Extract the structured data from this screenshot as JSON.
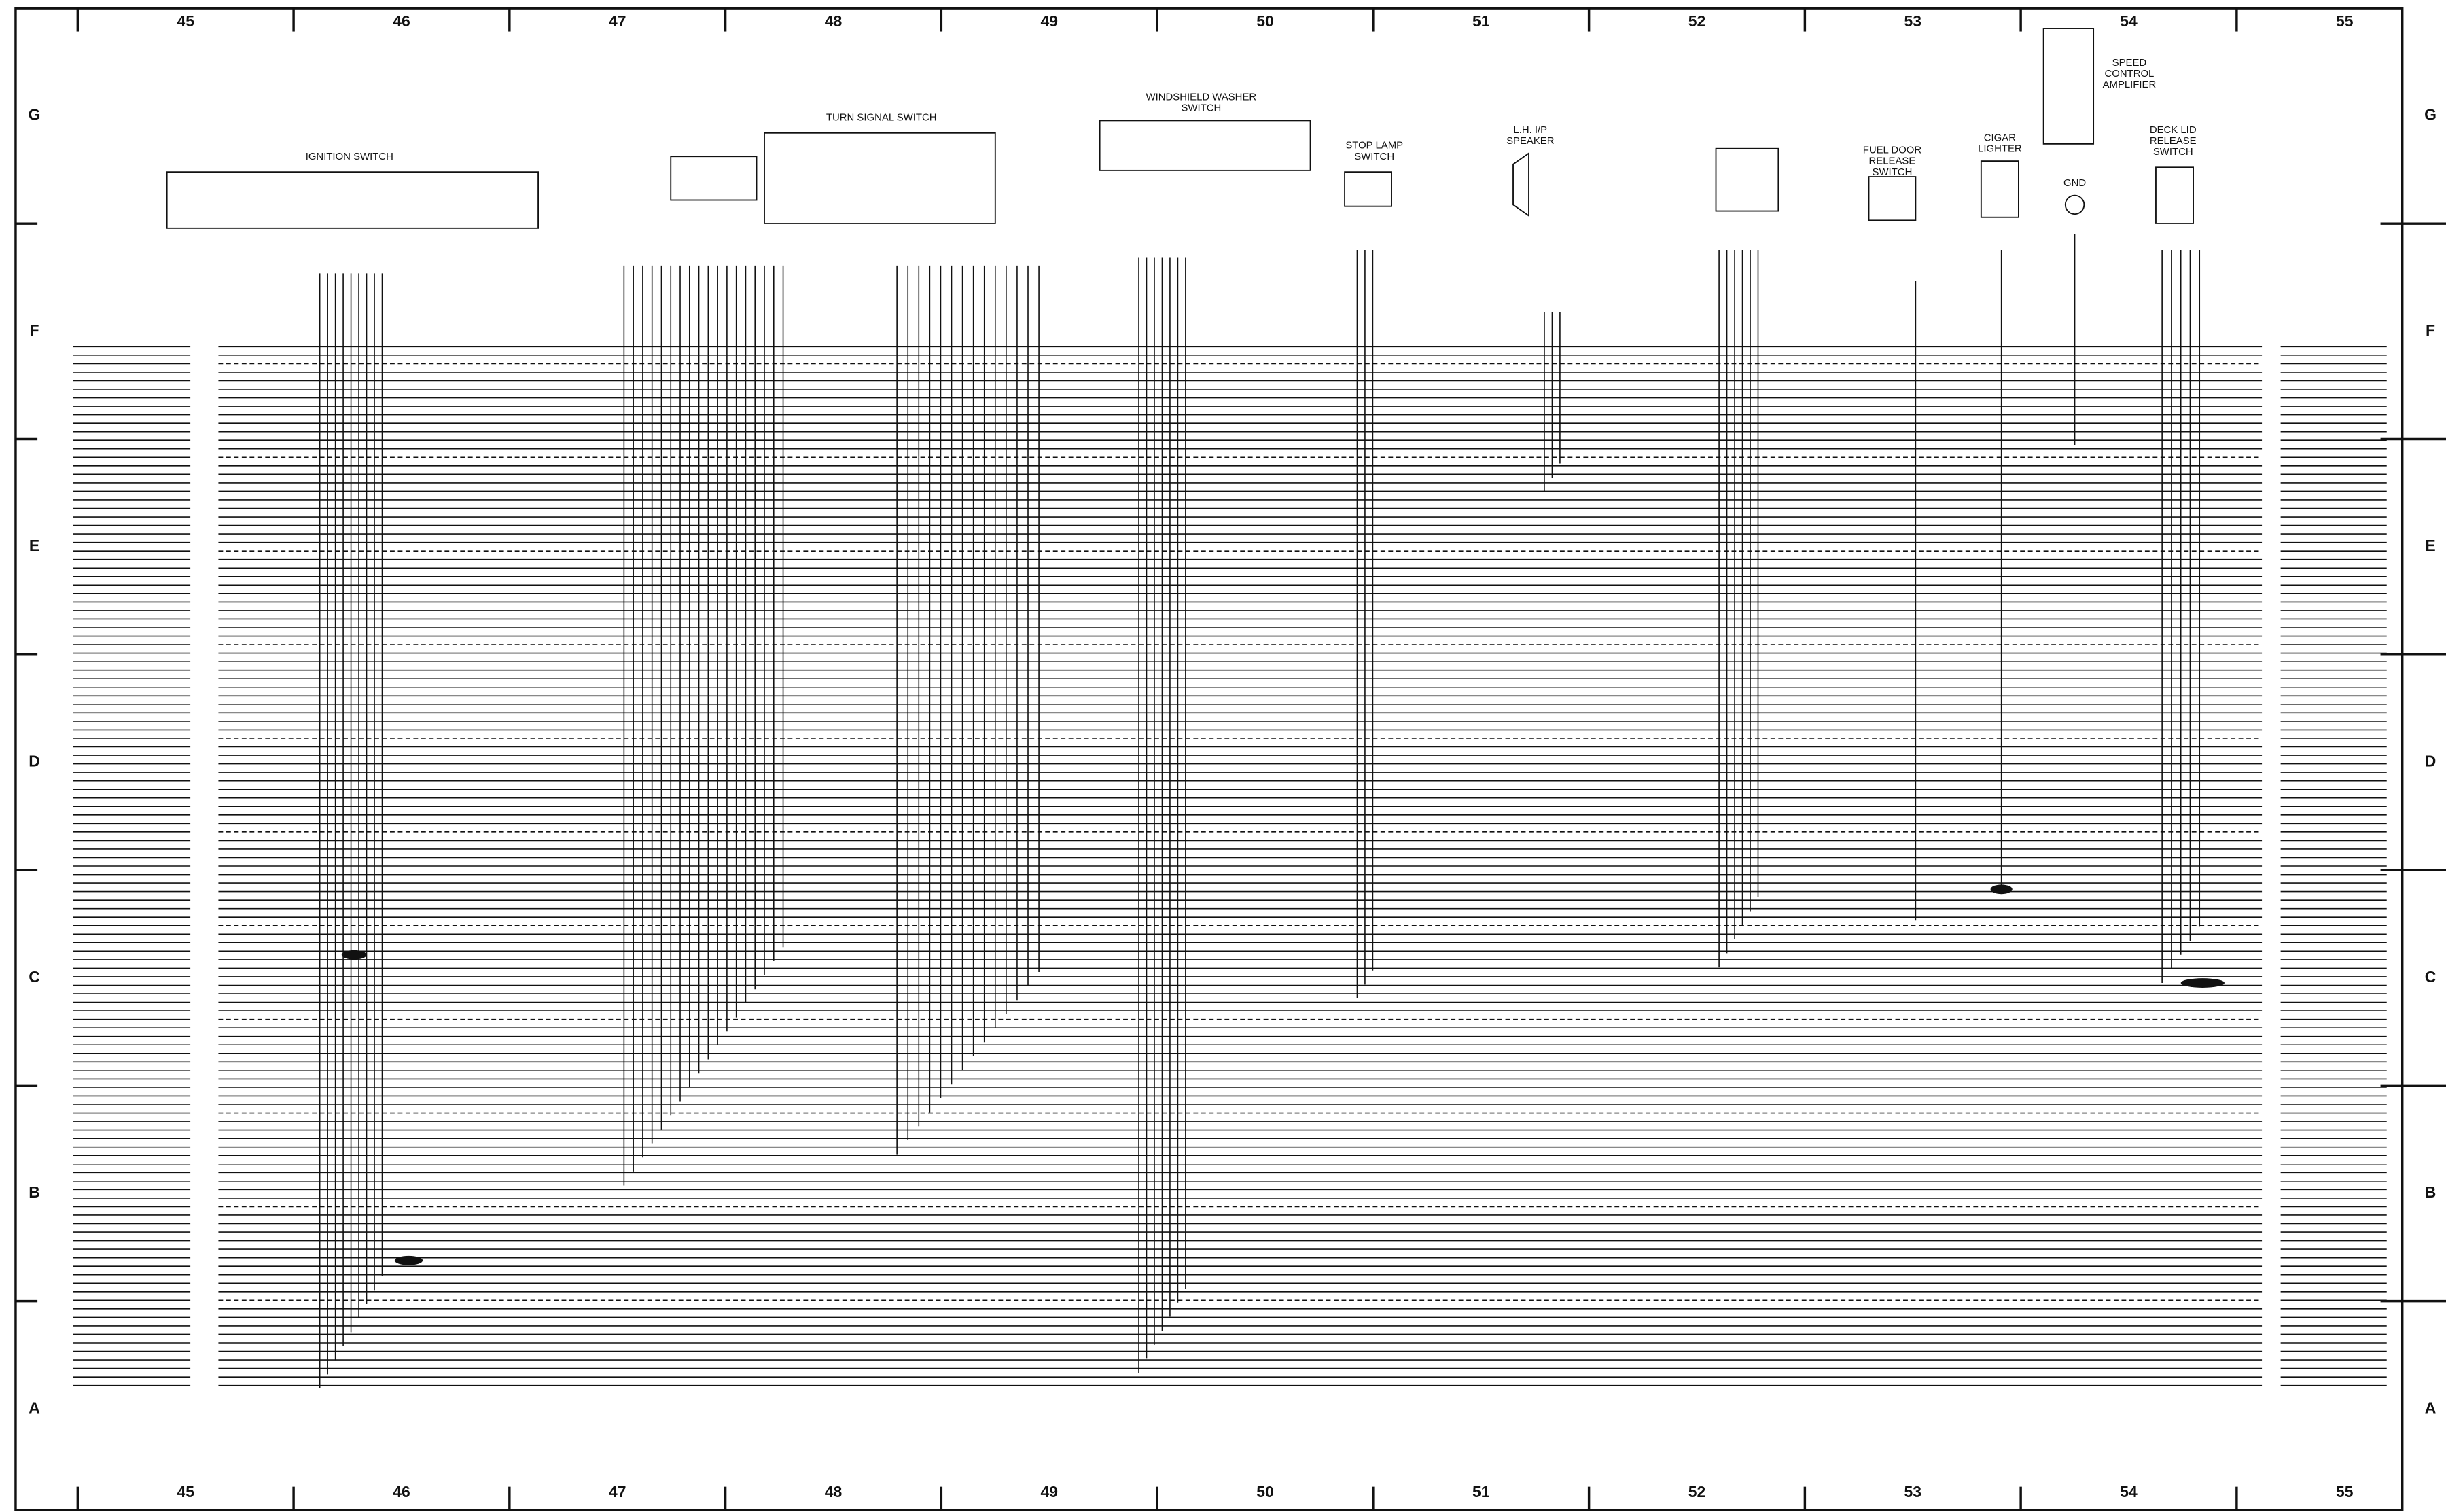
{
  "grid": {
    "columns": [
      "45",
      "46",
      "47",
      "48",
      "49",
      "50",
      "51",
      "52",
      "53",
      "54",
      "55"
    ],
    "rows": [
      "G",
      "F",
      "E",
      "D",
      "C",
      "B",
      "A"
    ]
  },
  "components": [
    {
      "label": [
        "IGNITION SWITCH"
      ]
    },
    {
      "label": [
        "TURN SIGNAL SWITCH"
      ]
    },
    {
      "label": [
        "WINDSHIELD WASHER",
        "SWITCH"
      ]
    },
    {
      "label": [
        "STOP LAMP",
        "SWITCH"
      ]
    },
    {
      "label": [
        "L.H. I/P",
        "SPEAKER"
      ]
    },
    {
      "label": [
        "FUEL DOOR",
        "RELEASE",
        "SWITCH"
      ]
    },
    {
      "label": [
        "CIGAR",
        "LIGHTER"
      ]
    },
    {
      "label": [
        "GND"
      ]
    },
    {
      "label": [
        "DECK LID",
        "RELEASE",
        "SWITCH"
      ]
    },
    {
      "label": [
        "SPEED",
        "CONTROL",
        "AMPLIFIER"
      ]
    }
  ]
}
